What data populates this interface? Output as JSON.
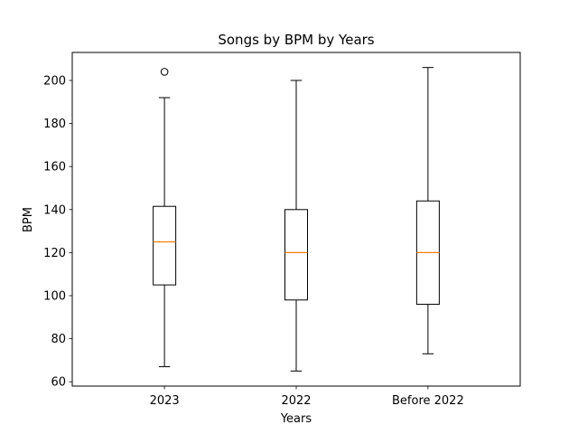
{
  "chart_data": {
    "type": "boxplot",
    "title": "Songs by BPM by Years",
    "xlabel": "Years",
    "ylabel": "BPM",
    "ylim": [
      58,
      213
    ],
    "yticks": [
      60,
      80,
      100,
      120,
      140,
      160,
      180,
      200
    ],
    "grid": false,
    "categories": [
      "2023",
      "2022",
      "Before 2022"
    ],
    "boxes": [
      {
        "category": "2023",
        "whisker_low": 67,
        "q1": 105,
        "median": 125,
        "q3": 141.5,
        "whisker_high": 192,
        "outliers": [
          204
        ]
      },
      {
        "category": "2022",
        "whisker_low": 65,
        "q1": 98,
        "median": 120,
        "q3": 140,
        "whisker_high": 200,
        "outliers": []
      },
      {
        "category": "Before 2022",
        "whisker_low": 73,
        "q1": 96,
        "median": 120,
        "q3": 144,
        "whisker_high": 206,
        "outliers": []
      }
    ],
    "colors": {
      "box": "#000000",
      "median": "#ff7f0e",
      "axis": "#000000"
    }
  }
}
